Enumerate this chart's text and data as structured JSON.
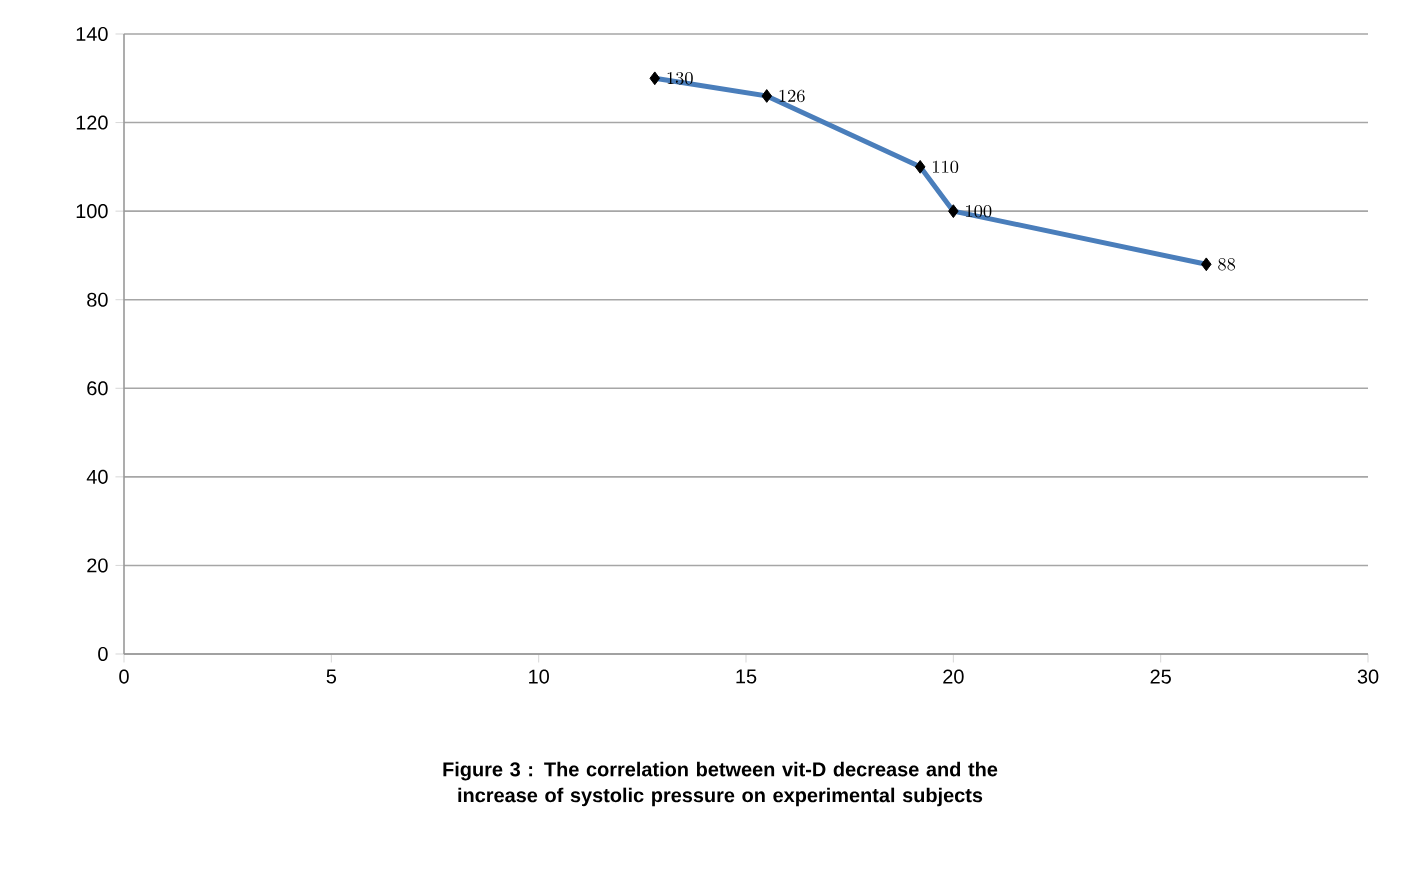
{
  "chart_data": {
    "type": "line",
    "annotations": [
      "**Figure 3 : The correlation between vit-D decrease and the increase of systolic pressure on experimental subjects**"
    ],
    "x": [
      12.8,
      15.5,
      19.2,
      20.0,
      26.1
    ],
    "values": [
      130,
      126,
      110,
      100,
      88
    ],
    "color": "#4a7ebb",
    "marker": "diamond",
    "line_style": "solid",
    "data_labels": true,
    "grid": "y",
    "xlim": [
      0,
      30
    ],
    "xticks": [
      0,
      5,
      10,
      15,
      20,
      25,
      30
    ],
    "ylim": [
      0,
      140
    ],
    "yticks": [
      0,
      20,
      40,
      60,
      80,
      100,
      120,
      140
    ]
  }
}
